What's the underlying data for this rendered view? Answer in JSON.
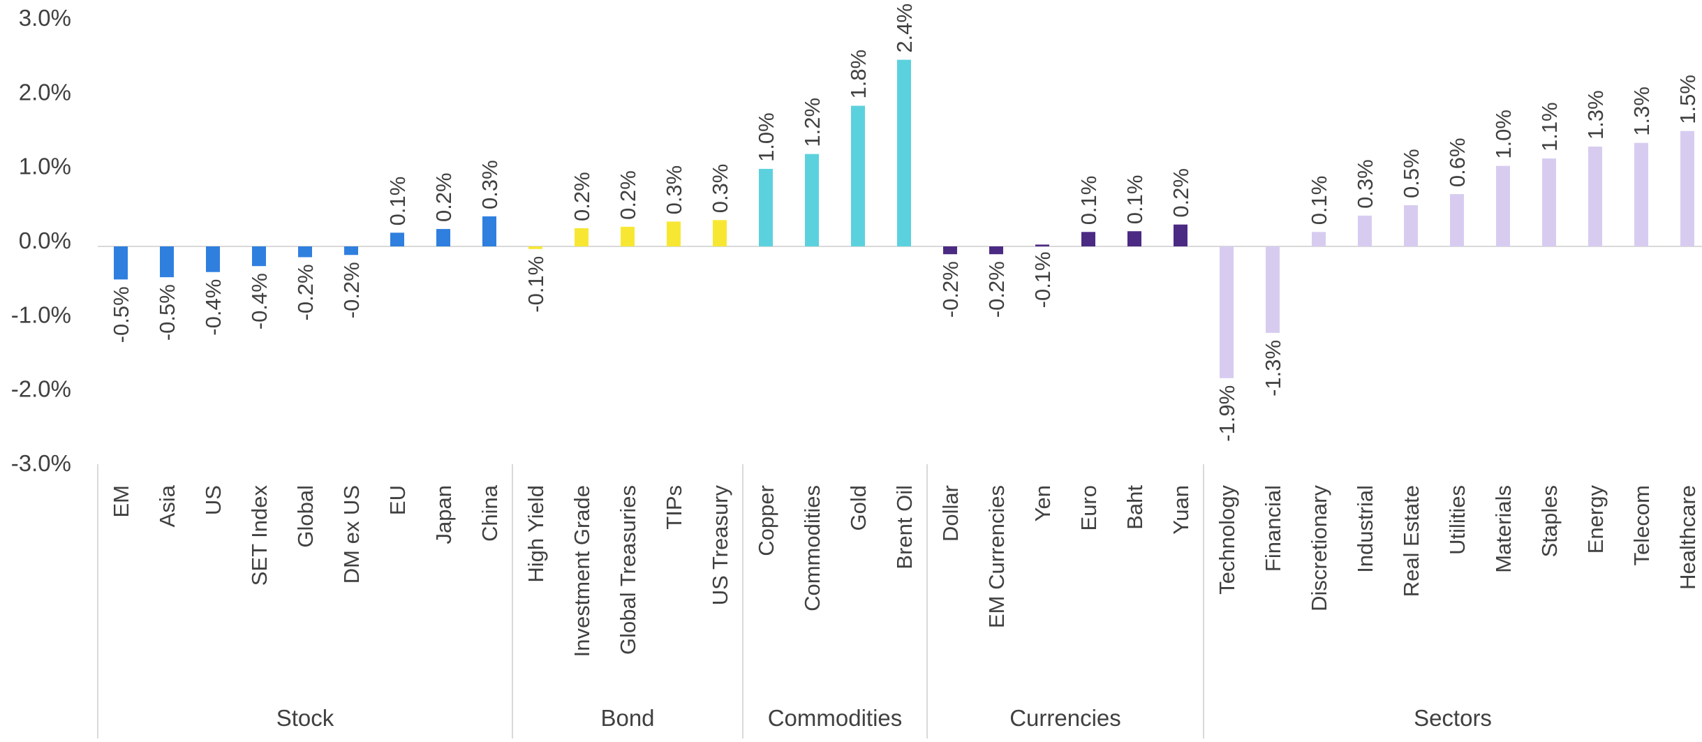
{
  "chart_data": {
    "type": "bar",
    "ylim": [
      -3.0,
      3.0
    ],
    "ytick_values": [
      -3.0,
      -2.0,
      -1.0,
      0.0,
      1.0,
      2.0,
      3.0
    ],
    "ytick_labels": [
      "-3.0%",
      "-2.0%",
      "-1.0%",
      "0.0%",
      "1.0%",
      "2.0%",
      "3.0%"
    ],
    "grid": false,
    "groups": [
      {
        "name": "Stock",
        "color": "#2F7FDF",
        "categories": [
          "EM",
          "Asia",
          "US",
          "SET Index",
          "Global",
          "DM ex US",
          "EU",
          "Japan",
          "China"
        ],
        "values": [
          -0.53,
          -0.5,
          -0.43,
          -0.35,
          -0.23,
          -0.2,
          0.1,
          0.15,
          0.32
        ],
        "labels": [
          "-0.5%",
          "-0.5%",
          "-0.4%",
          "-0.4%",
          "-0.2%",
          "-0.2%",
          "0.1%",
          "0.2%",
          "0.3%"
        ]
      },
      {
        "name": "Bond",
        "color": "#F7E733",
        "categories": [
          "High Yield",
          "Investment Grade",
          "Global Treasuries",
          "TIPs",
          "US Treasury"
        ],
        "values": [
          -0.12,
          0.16,
          0.18,
          0.25,
          0.27
        ],
        "labels": [
          "-0.1%",
          "0.2%",
          "0.2%",
          "0.3%",
          "0.3%"
        ]
      },
      {
        "name": "Commodities",
        "color": "#5CD1DE",
        "categories": [
          "Copper",
          "Commodities",
          "Gold",
          "Brent Oil"
        ],
        "values": [
          0.96,
          1.16,
          1.81,
          2.43
        ],
        "labels": [
          "1.0%",
          "1.2%",
          "1.8%",
          "2.4%"
        ]
      },
      {
        "name": "Currencies",
        "color": "#4B2A84",
        "categories": [
          "Dollar",
          "EM Currencies",
          "Yen",
          "Euro",
          "Baht",
          "Yuan"
        ],
        "values": [
          -0.19,
          -0.19,
          -0.06,
          0.11,
          0.12,
          0.21
        ],
        "labels": [
          "-0.2%",
          "-0.2%",
          "-0.1%",
          "0.1%",
          "0.1%",
          "0.2%"
        ]
      },
      {
        "name": "Sectors",
        "color": "#D7CCF0",
        "categories": [
          "Technology",
          "Financial",
          "Discretionary",
          "Industrial",
          "Real Estate",
          "Utilities",
          "Materials",
          "Staples",
          "Energy",
          "Telecom",
          "Healthcare"
        ],
        "values": [
          -1.86,
          -1.25,
          0.11,
          0.33,
          0.47,
          0.62,
          1.0,
          1.1,
          1.26,
          1.31,
          1.47
        ],
        "labels": [
          "-1.9%",
          "-1.3%",
          "0.1%",
          "0.3%",
          "0.5%",
          "0.6%",
          "1.0%",
          "1.1%",
          "1.3%",
          "1.3%",
          "1.5%"
        ]
      }
    ]
  }
}
